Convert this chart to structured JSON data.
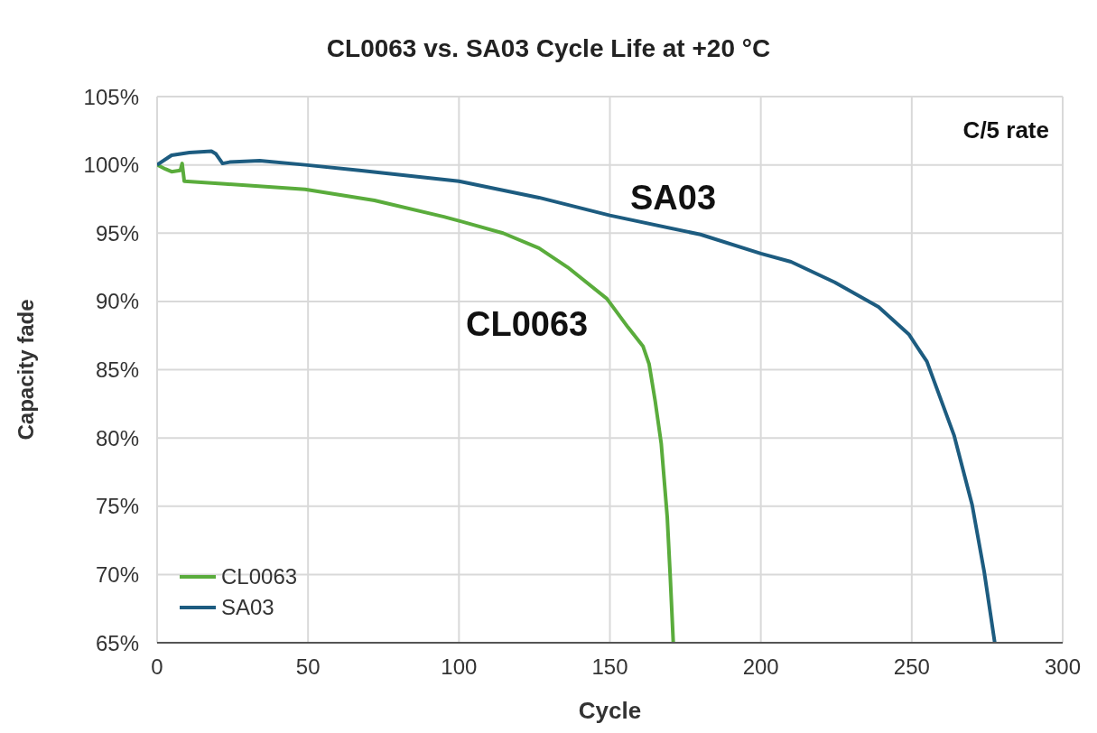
{
  "chart_data": {
    "type": "line",
    "title": "CL0063 vs. SA03 Cycle Life at +20 °C",
    "xlabel": "Cycle",
    "ylabel": "Capacity fade",
    "xlim": [
      0,
      300
    ],
    "xticks": [
      0,
      50,
      100,
      150,
      200,
      250,
      300
    ],
    "ylim": [
      65,
      105
    ],
    "yticks": [
      {
        "value": 65,
        "label": "65%"
      },
      {
        "value": 70,
        "label": "70%"
      },
      {
        "value": 75,
        "label": "75%"
      },
      {
        "value": 80,
        "label": "80%"
      },
      {
        "value": 85,
        "label": "85%"
      },
      {
        "value": 90,
        "label": "90%"
      },
      {
        "value": 95,
        "label": "95%"
      },
      {
        "value": 100,
        "label": "100%"
      },
      {
        "value": 105,
        "label": "105%"
      }
    ],
    "grid": true,
    "legend": "bottom left",
    "marker": "none",
    "line_style": "solid",
    "annotations": [
      "C/5 rate",
      "SA03",
      "CL0063"
    ],
    "series": [
      {
        "name": "CL0063",
        "color": "#5aac3c",
        "x": [
          0,
          2.7,
          4.8,
          7.7,
          8.3,
          9,
          22.6,
          49,
          72,
          95,
          100,
          114.6,
          126.5,
          136,
          149,
          156,
          161,
          163,
          165,
          167,
          169,
          170,
          171
        ],
        "values": [
          100,
          99.7,
          99.5,
          99.6,
          100.1,
          98.8,
          98.6,
          98.2,
          97.4,
          96.2,
          95.9,
          95,
          93.9,
          92.5,
          90.2,
          88.1,
          86.7,
          85.4,
          82.7,
          79.6,
          74.2,
          69.8,
          65
        ]
      },
      {
        "name": "SA03",
        "color": "#1d5c80",
        "x": [
          0,
          4.8,
          10.7,
          18,
          19.5,
          21.7,
          24,
          34,
          49,
          67,
          100,
          126.5,
          150,
          180,
          200,
          210,
          224.5,
          239,
          249,
          255,
          264,
          270,
          274,
          277.5
        ],
        "values": [
          100,
          100.7,
          100.9,
          101,
          100.8,
          100.1,
          100.2,
          100.3,
          100,
          99.6,
          98.8,
          97.6,
          96.3,
          94.9,
          93.5,
          92.9,
          91.4,
          89.6,
          87.6,
          85.6,
          80.2,
          75.1,
          70.2,
          65
        ]
      }
    ]
  }
}
